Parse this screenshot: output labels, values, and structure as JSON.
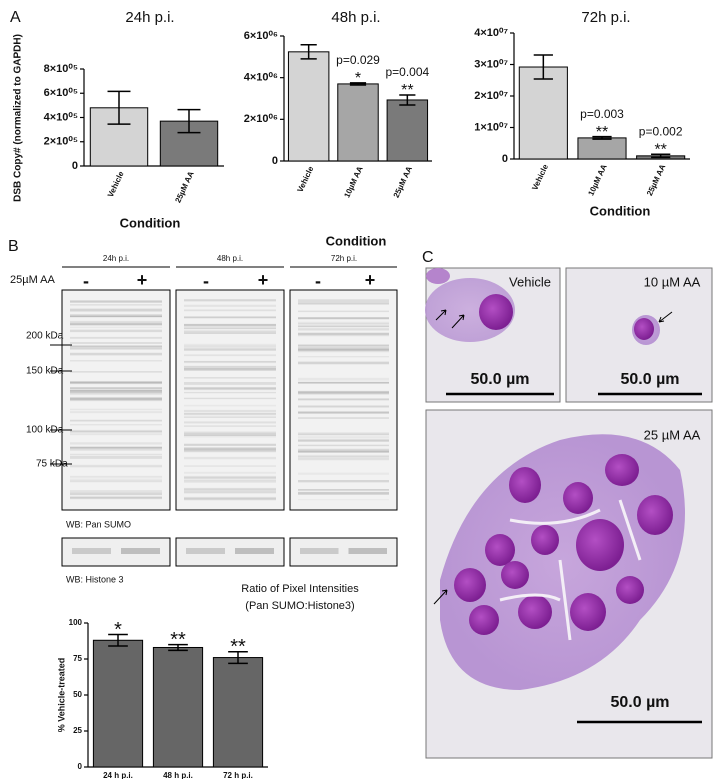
{
  "panel_labels": [
    "A",
    "B",
    "C"
  ],
  "shared_y_label": "DSB Copy# (normalized to GAPDH)",
  "chart_data": [
    {
      "type": "bar",
      "title": "24h p.i.",
      "x_label": "Condition",
      "categories": [
        "Vehicle",
        "25µM AA"
      ],
      "values": [
        480000,
        370000
      ],
      "errors": [
        135000,
        95000
      ],
      "colors": [
        "#d4d4d4",
        "#7a7a7a"
      ],
      "ylim": [
        0,
        800000
      ],
      "yticks": [
        0,
        {
          "value": 200000,
          "label": "2×10⁰⁵"
        },
        {
          "value": 400000,
          "label": "4×10⁰⁵"
        },
        {
          "value": 600000,
          "label": "6×10⁰⁵"
        },
        {
          "value": 800000,
          "label": "8×10⁰⁵"
        }
      ]
    },
    {
      "type": "bar",
      "title": "48h p.i.",
      "x_label": "Condition",
      "categories": [
        "Vehicle",
        "10µM AA",
        "25µM AA"
      ],
      "values": [
        5240000,
        3700000,
        2930000
      ],
      "errors": [
        340000,
        50000,
        240000
      ],
      "p_labels": [
        null,
        "p=0.029",
        "p=0.004"
      ],
      "stars": [
        null,
        "*",
        "**"
      ],
      "colors": [
        "#d4d4d4",
        "#a6a6a6",
        "#7a7a7a"
      ],
      "ylim": [
        0,
        6000000
      ],
      "yticks": [
        0,
        {
          "value": 2000000,
          "label": "2×10⁰⁶"
        },
        {
          "value": 4000000,
          "label": "4×10⁰⁶"
        },
        {
          "value": 6000000,
          "label": "6×10⁰⁶"
        }
      ]
    },
    {
      "type": "bar",
      "title": "72h p.i.",
      "x_label": "Condition",
      "categories": [
        "Vehicle",
        "10µM AA",
        "25µM AA"
      ],
      "values": [
        29200000,
        6700000,
        1000000
      ],
      "errors": [
        3800000,
        400000,
        500000
      ],
      "p_labels": [
        null,
        "p=0.003",
        "p=0.002"
      ],
      "stars": [
        null,
        "**",
        "**"
      ],
      "colors": [
        "#d4d4d4",
        "#a6a6a6",
        "#7a7a7a"
      ],
      "ylim": [
        0,
        40000000
      ],
      "yticks": [
        0,
        {
          "value": 10000000,
          "label": "1×10⁰⁷"
        },
        {
          "value": 20000000,
          "label": "2×10⁰⁷"
        },
        {
          "value": 30000000,
          "label": "3×10⁰⁷"
        },
        {
          "value": 40000000,
          "label": "4×10⁰⁷"
        }
      ]
    },
    {
      "type": "bar",
      "title": "Ratio of Pixel Intensities",
      "subtitle": "(Pan SUMO:Histone3)",
      "y_label": "% Vehicle-treated",
      "categories": [
        "24 h p.i.",
        "48 h p.i.",
        "72 h p.i."
      ],
      "values": [
        88,
        83,
        76
      ],
      "errors": [
        4,
        2,
        4
      ],
      "stars": [
        "*",
        "**",
        "**"
      ],
      "colors": [
        "#666666",
        "#666666",
        "#666666"
      ],
      "ylim": [
        0,
        100
      ],
      "yticks": [
        0,
        25,
        50,
        75,
        100
      ]
    }
  ],
  "blot": {
    "lanes": [
      "24h p.i.",
      "48h p.i.",
      "72h p.i."
    ],
    "treatment": "25µM AA",
    "minus": "-",
    "plus": "+",
    "markers": [
      "200 kDa",
      "150 kDa",
      "100 kDa",
      "75 kDa"
    ],
    "wb_top": "WB: Pan SUMO",
    "wb_bottom": "WB: Histone 3"
  },
  "micrographs": {
    "labels": [
      "Vehicle",
      "10 µM AA",
      "25 µM AA"
    ],
    "scale": "50.0 µm"
  }
}
